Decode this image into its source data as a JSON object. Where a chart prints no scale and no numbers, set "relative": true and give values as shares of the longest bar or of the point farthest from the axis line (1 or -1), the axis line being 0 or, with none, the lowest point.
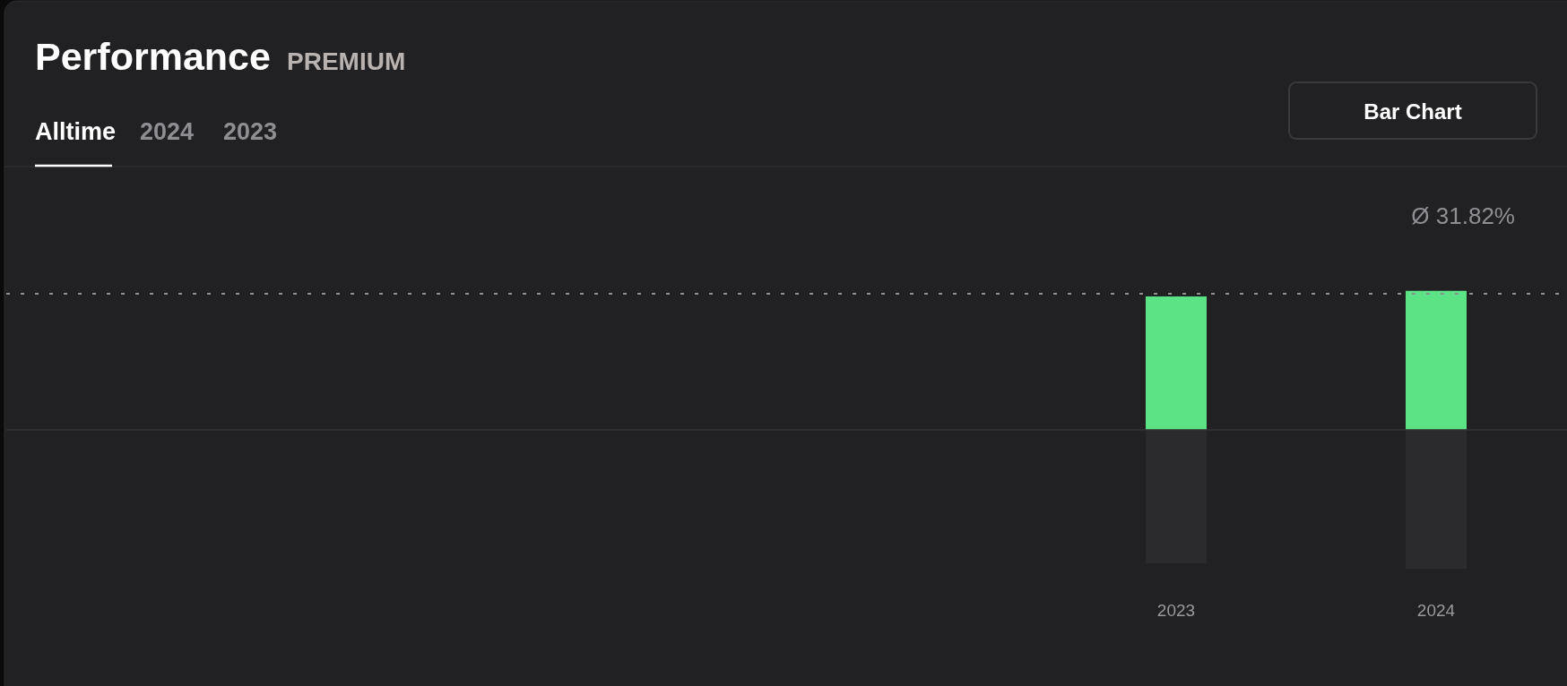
{
  "chart_data": {
    "type": "bar",
    "title": "Performance",
    "subtitle": "PREMIUM",
    "categories": [
      null,
      null,
      null,
      null,
      "2023",
      "2024"
    ],
    "relative": true,
    "series": [
      {
        "color": "#5ce386",
        "values": [
          null,
          null,
          null,
          null,
          0.96,
          1
        ]
      },
      {
        "color": "#2b2b2d",
        "values": [
          null,
          null,
          null,
          null,
          -0.96,
          -1
        ]
      }
    ],
    "ref_lines": [
      {
        "axis": "y",
        "value": 0.98,
        "color": "#8e8e8e",
        "line_style": "dotted"
      }
    ],
    "annotations": [
      "Alltime",
      "2024",
      "2023",
      "Bar Chart",
      "Ø 31.82%"
    ]
  }
}
